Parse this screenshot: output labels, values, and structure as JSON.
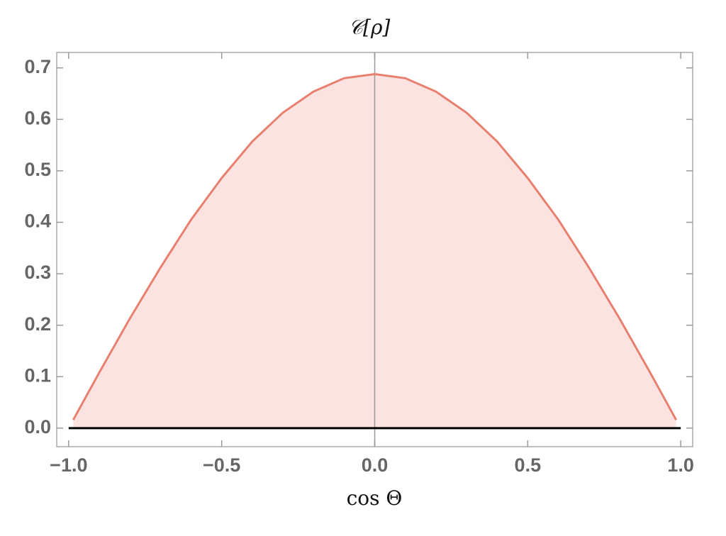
{
  "chart_data": {
    "type": "area",
    "title": "𝒞[ρ]",
    "x_label": "cos Θ",
    "x": [
      -0.985,
      -0.95,
      -0.9,
      -0.8,
      -0.7,
      -0.6,
      -0.5,
      -0.4,
      -0.3,
      -0.2,
      -0.1,
      0,
      0.1,
      0.2,
      0.3,
      0.4,
      0.5,
      0.6,
      0.7,
      0.8,
      0.9,
      0.95,
      0.985
    ],
    "values": [
      0.016,
      0.054,
      0.108,
      0.213,
      0.312,
      0.405,
      0.486,
      0.557,
      0.613,
      0.654,
      0.68,
      0.688,
      0.68,
      0.654,
      0.613,
      0.557,
      0.486,
      0.405,
      0.312,
      0.213,
      0.108,
      0.054,
      0.016
    ],
    "color": "#e8806f",
    "fill_color": "#fae3e1",
    "xlim": [
      -1.039,
      1.039
    ],
    "ylim": [
      -0.036,
      0.73
    ],
    "xticks": [
      {
        "value": -1,
        "label": "−1.0"
      },
      {
        "value": -0.5,
        "label": "−0.5"
      },
      {
        "value": 0,
        "label": "0.0"
      },
      0.5,
      {
        "value": 1,
        "label": "1.0"
      }
    ],
    "yticks": [
      {
        "value": 0,
        "label": "0.0"
      },
      0.1,
      0.2,
      0.3,
      0.4,
      0.5,
      0.6,
      0.7
    ]
  }
}
